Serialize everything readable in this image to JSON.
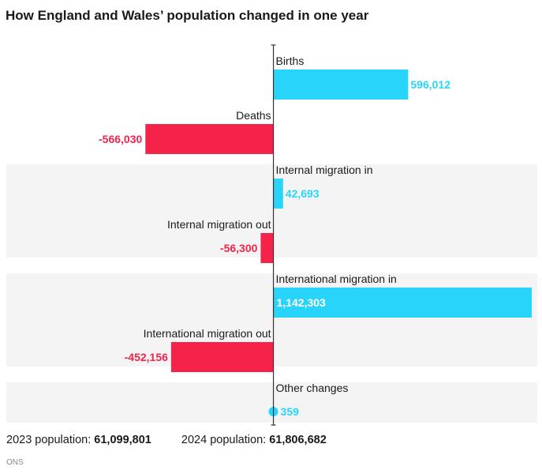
{
  "title": "How England and Wales’ population changed in one year",
  "chart_data": {
    "type": "bar",
    "orientation": "horizontal",
    "title": "How England and Wales’ population changed in one year",
    "categories": [
      "Births",
      "Deaths",
      "Internal migration in",
      "Internal migration out",
      "International migration in",
      "International migration out",
      "Other changes"
    ],
    "values": [
      596012,
      -566030,
      42693,
      -56300,
      1142303,
      -452156,
      359
    ],
    "value_labels": [
      "596,012",
      "-566,030",
      "42,693",
      "-56,300",
      "1,142,303",
      "-452,156",
      "359"
    ],
    "xlim": [
      -1181000,
      1142303
    ],
    "positive_color": "#29d4fa",
    "negative_color": "#f5234a",
    "band_color": "#f4f4f4"
  },
  "footer": {
    "pop2023_label": "2023 population:",
    "pop2023_value": "61,099,801",
    "pop2024_label": "2024 population:",
    "pop2024_value": "61,806,682"
  },
  "source": "ONS"
}
